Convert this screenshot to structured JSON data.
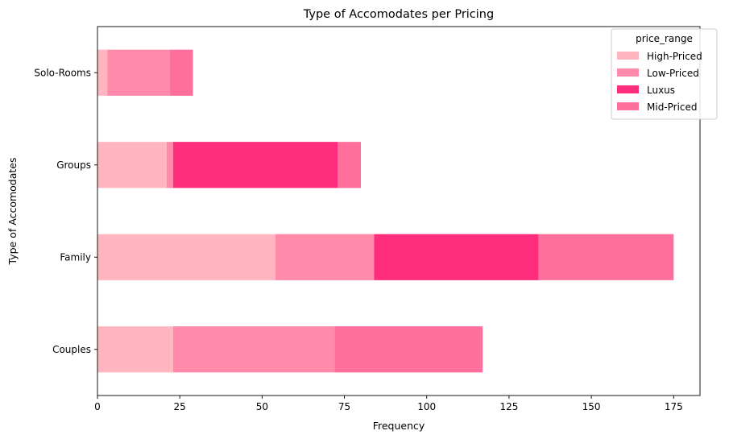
{
  "chart_data": {
    "type": "bar",
    "orientation": "horizontal",
    "stacked": true,
    "title": "Type of Accomodates per Pricing",
    "xlabel": "Frequency",
    "ylabel": "Type of Accomodates",
    "categories": [
      "Couples",
      "Family",
      "Groups",
      "Solo-Rooms"
    ],
    "xlim": [
      0,
      183
    ],
    "xticks": [
      0,
      25,
      50,
      75,
      100,
      125,
      150,
      175
    ],
    "grid": false,
    "legend_title": "price_range",
    "legend_position": "top-right",
    "series": [
      {
        "name": "High-Priced",
        "color": "#FFB6C1",
        "values": [
          23,
          54,
          21,
          3
        ]
      },
      {
        "name": "Low-Priced",
        "color": "#FF8AAA",
        "values": [
          49,
          30,
          2,
          19
        ]
      },
      {
        "name": "Luxus",
        "color": "#FF2E7C",
        "values": [
          0,
          50,
          50,
          0
        ]
      },
      {
        "name": "Mid-Priced",
        "color": "#FF6F9C",
        "values": [
          45,
          41,
          7,
          7
        ]
      }
    ]
  }
}
